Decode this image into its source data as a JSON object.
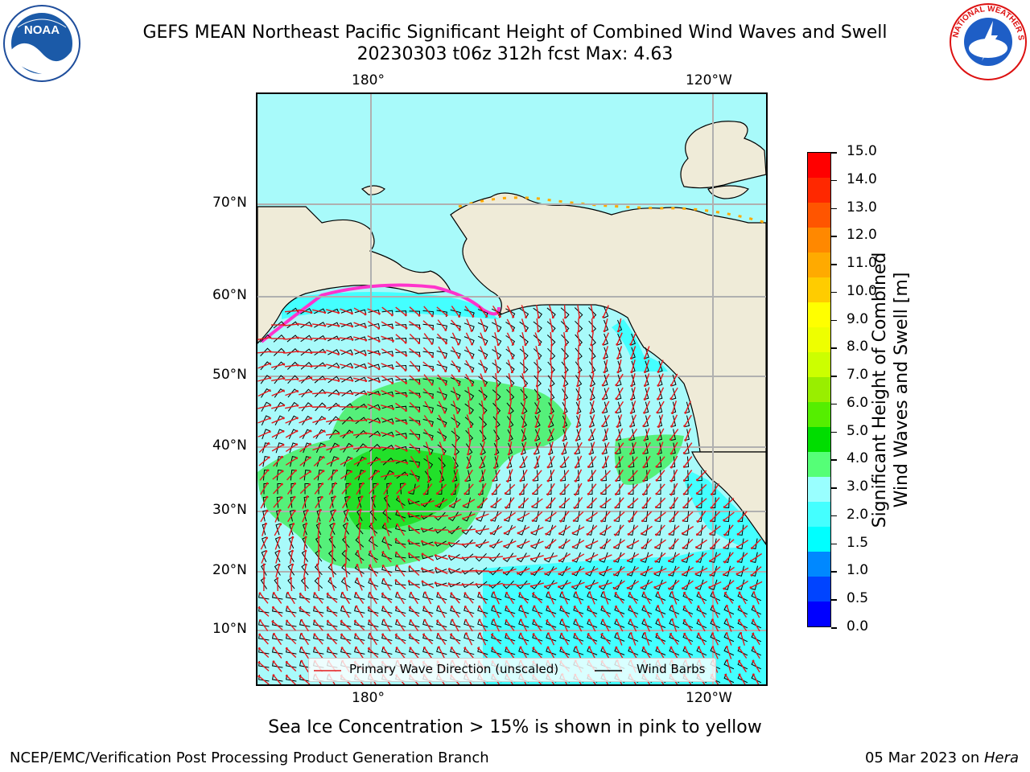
{
  "header": {
    "title_line1": "GEFS MEAN Northeast Pacific Significant Height of Combined Wind Waves and Swell",
    "title_line2": "20230303 t06z 312h fcst   Max: 4.63"
  },
  "logos": {
    "left": "NOAA",
    "right": "NATIONAL WEATHER SERVICE"
  },
  "map": {
    "lon_labels_top": [
      "180°",
      "120°W"
    ],
    "lon_labels_bottom": [
      "180°",
      "120°W"
    ],
    "lat_labels": [
      "70°N",
      "60°N",
      "50°N",
      "40°N",
      "30°N",
      "20°N",
      "10°N"
    ],
    "colors": {
      "land": "#efebd8",
      "ocean_light": "#a8fafa",
      "ocean_cyan": "#44ffff",
      "wave_green_light": "#55f07a",
      "wave_green": "#22e02a",
      "ice_magenta": "#ff33cc",
      "arrow_red": "#e31a1c",
      "grid": "#b0b0b0"
    }
  },
  "legend": {
    "wave_label": "Primary Wave Direction (unscaled)",
    "barb_label": "Wind Barbs"
  },
  "colorbar": {
    "label_line1": "Significant Height of Combined",
    "label_line2": "Wind Waves and Swell [m]",
    "ticks": [
      "15.0",
      "14.0",
      "13.0",
      "12.0",
      "11.0",
      "10.0",
      "9.0",
      "8.0",
      "7.0",
      "6.0",
      "5.0",
      "4.0",
      "3.0",
      "2.0",
      "1.5",
      "1.0",
      "0.5",
      "0.0"
    ],
    "colors_top_to_bottom": [
      "#ff0000",
      "#ff2800",
      "#ff5500",
      "#ff8800",
      "#ffaa00",
      "#ffcc00",
      "#ffff00",
      "#eeff00",
      "#ccff00",
      "#99ee00",
      "#55ee00",
      "#00dd00",
      "#55ff77",
      "#99ffff",
      "#44ffff",
      "#00ffff",
      "#0088ff",
      "#0044ff",
      "#0000ff"
    ]
  },
  "footer": {
    "ice_note": "Sea Ice Concentration > 15% is shown in pink to yellow",
    "left": "NCEP/EMC/Verification Post Processing Product Generation Branch",
    "date": "05 Mar 2023 on ",
    "machine": "Hera"
  }
}
